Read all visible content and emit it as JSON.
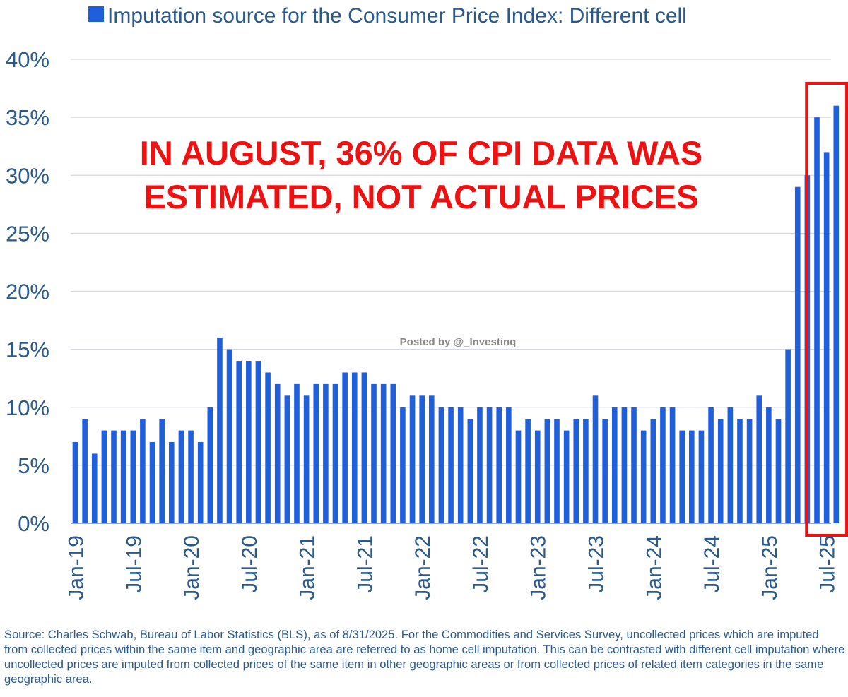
{
  "chart_data": {
    "type": "bar",
    "legend": "Imputation source for the Consumer Price Index: Different cell",
    "legend_position": "top-left",
    "series_color": "#1f5fdc",
    "ylim": [
      0,
      40
    ],
    "yticks": [
      0,
      5,
      10,
      15,
      20,
      25,
      30,
      35,
      40
    ],
    "ytick_labels": [
      "0%",
      "5%",
      "10%",
      "15%",
      "20%",
      "25%",
      "30%",
      "35%",
      "40%"
    ],
    "grid": true,
    "xtick_labels": [
      {
        "index": 0,
        "label": "Jan-19"
      },
      {
        "index": 6,
        "label": "Jul-19"
      },
      {
        "index": 12,
        "label": "Jan-20"
      },
      {
        "index": 18,
        "label": "Jul-20"
      },
      {
        "index": 24,
        "label": "Jan-21"
      },
      {
        "index": 30,
        "label": "Jul-21"
      },
      {
        "index": 36,
        "label": "Jan-22"
      },
      {
        "index": 42,
        "label": "Jul-22"
      },
      {
        "index": 48,
        "label": "Jan-23"
      },
      {
        "index": 54,
        "label": "Jul-23"
      },
      {
        "index": 60,
        "label": "Jan-24"
      },
      {
        "index": 66,
        "label": "Jul-24"
      },
      {
        "index": 72,
        "label": "Jan-25"
      },
      {
        "index": 78,
        "label": "Jul-25"
      }
    ],
    "values": [
      7,
      9,
      6,
      8,
      8,
      8,
      8,
      9,
      7,
      9,
      7,
      8,
      8,
      7,
      10,
      16,
      15,
      14,
      14,
      14,
      13,
      12,
      11,
      12,
      11,
      12,
      12,
      12,
      13,
      13,
      13,
      12,
      12,
      12,
      10,
      11,
      11,
      11,
      10,
      10,
      10,
      9,
      10,
      10,
      10,
      10,
      8,
      9,
      8,
      9,
      9,
      8,
      9,
      9,
      11,
      9,
      10,
      10,
      10,
      8,
      9,
      10,
      10,
      8,
      8,
      8,
      10,
      9,
      10,
      9,
      9,
      11,
      10,
      9,
      15,
      29,
      30,
      35,
      32,
      36
    ],
    "highlight_color": "#ee1111",
    "highlight_range": [
      77,
      79
    ],
    "annotation": {
      "lines": [
        "IN AUGUST, 36% OF CPI DATA WAS",
        "ESTIMATED, NOT ACTUAL PRICES"
      ],
      "color": "#ee1111"
    }
  },
  "watermark": "Posted by @_Investinq",
  "source_note": "Source: Charles Schwab, Bureau of Labor Statistics (BLS), as of 8/31/2025. For the Commodities and Services Survey, uncollected prices which are imputed from collected prices within the same item and geographic area are referred to as home cell imputation. This can be contrasted with different cell imputation where uncollected prices are imputed from collected prices of the same item in other geographic areas or from collected prices of related item categories in the same geographic area."
}
